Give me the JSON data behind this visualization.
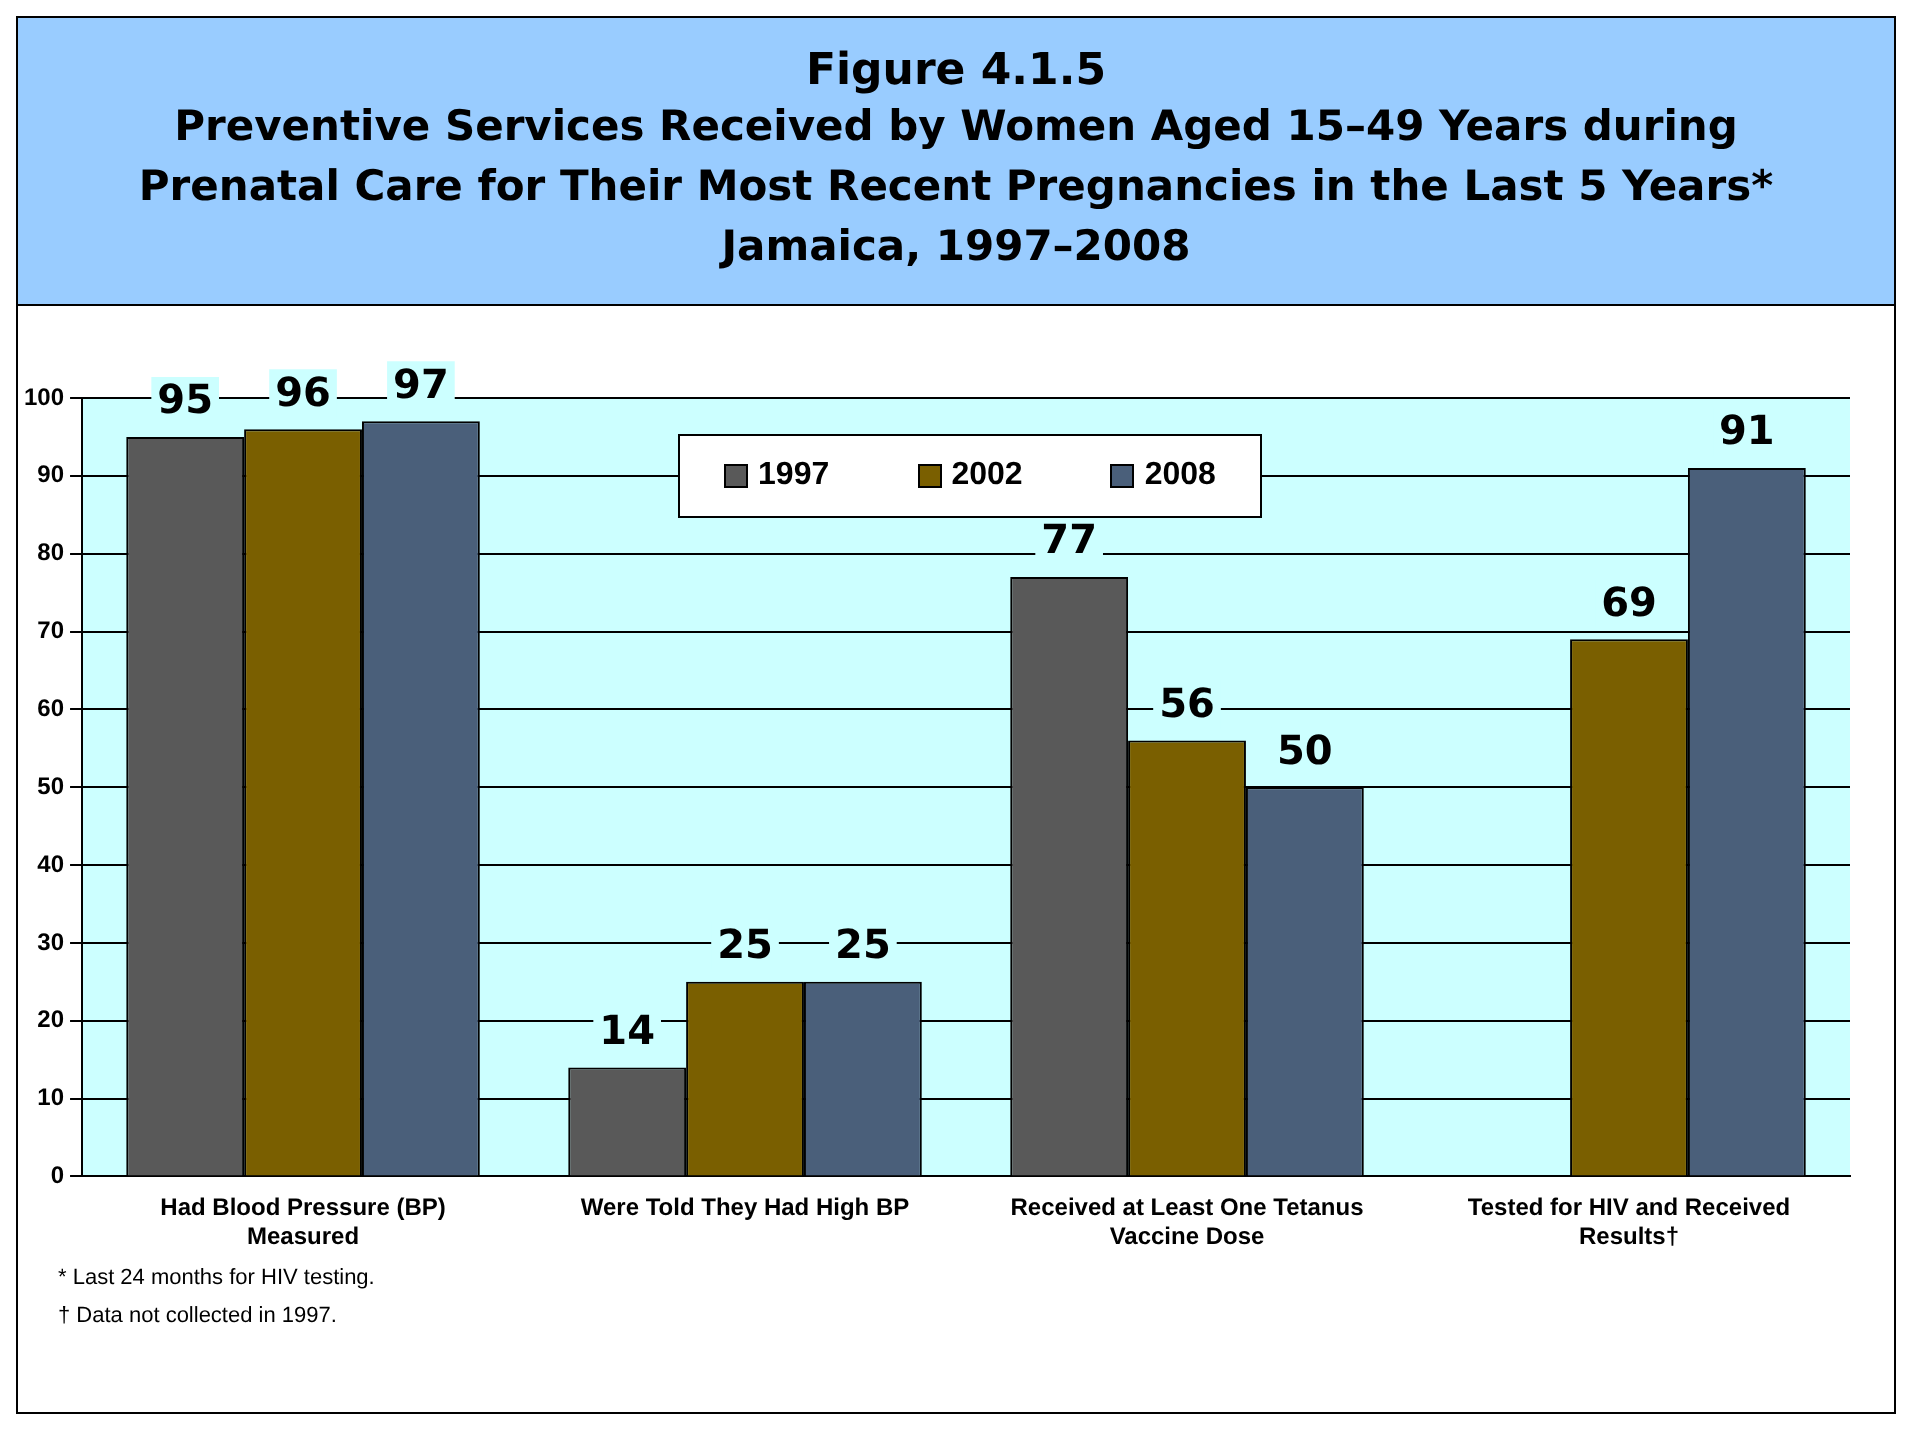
{
  "chart_data": {
    "type": "bar",
    "title": "Figure 4.1.5",
    "subtitle": "Preventive Services Received by Women Aged 15–49 Years during\nPrenatal Care for Their Most Recent Pregnancies in the Last 5 Years*\nJamaica, 1997–2008",
    "categories": [
      "Had Blood Pressure (BP) Measured",
      "Were Told They Had High BP",
      "Received at Least One Tetanus Vaccine Dose",
      "Tested for HIV and Received Results†"
    ],
    "series": [
      {
        "name": "1997",
        "color": "#595959",
        "values": [
          95,
          14,
          77,
          null
        ]
      },
      {
        "name": "2002",
        "color": "#7a5f00",
        "values": [
          96,
          25,
          56,
          69
        ]
      },
      {
        "name": "2008",
        "color": "#4a5f7a",
        "values": [
          97,
          25,
          50,
          91
        ]
      }
    ],
    "ylim": [
      0,
      100
    ],
    "yticks": [
      0,
      10,
      20,
      30,
      40,
      50,
      60,
      70,
      80,
      90,
      100
    ],
    "grid": "y",
    "legend": "top",
    "data_labels": true,
    "annotations": [
      "* Last 24 months for HIV testing.",
      "† Data not collected in 1997."
    ]
  }
}
